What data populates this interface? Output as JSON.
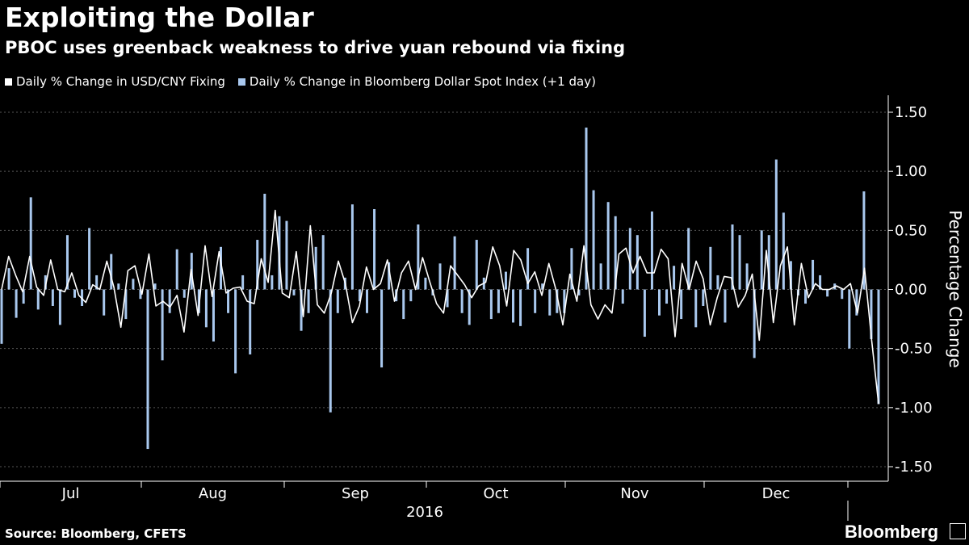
{
  "header": {
    "title": "Exploiting the Dollar",
    "subtitle": "PBOC uses greenback weakness to drive yuan rebound via fixing"
  },
  "footer": {
    "source": "Source: Bloomberg, CFETS",
    "brand": "Bloomberg",
    "brand_logo_icon": "bloomberg-terminal-icon"
  },
  "chart_data": {
    "type": "bar",
    "title": "Exploiting the Dollar",
    "subtitle": "PBOC uses greenback weakness to drive yuan rebound via fixing",
    "ylabel": "Percentage Change",
    "xlabel": "2016",
    "ylim": [
      -1.5,
      1.5
    ],
    "yticks": [
      "1.50",
      "1.00",
      "0.50",
      "0.00",
      "-0.50",
      "-1.00",
      "-1.50"
    ],
    "ytick_values": [
      1.5,
      1.0,
      0.5,
      0.0,
      -0.5,
      -1.0,
      -1.5
    ],
    "months": [
      "Jul",
      "Aug",
      "Sep",
      "Oct",
      "Nov",
      "Dec"
    ],
    "year_label": "2016",
    "grid": true,
    "legend_position": "top-left",
    "colors": {
      "line": "#ffffff",
      "bars": "#a9c8ee",
      "background": "#000000",
      "grid": "#555555"
    },
    "series": [
      {
        "name": "Daily % Change in USD/CNY Fixing",
        "type": "line",
        "values": [
          0.0,
          0.28,
          0.12,
          -0.02,
          0.28,
          0.02,
          -0.05,
          0.25,
          0.0,
          -0.02,
          0.14,
          -0.05,
          -0.11,
          0.04,
          0.0,
          0.24,
          0.02,
          -0.32,
          0.16,
          0.2,
          -0.04,
          0.3,
          -0.14,
          -0.1,
          -0.15,
          -0.05,
          -0.36,
          0.17,
          -0.22,
          0.37,
          -0.06,
          0.32,
          -0.03,
          0.01,
          0.02,
          -0.1,
          -0.12,
          0.26,
          0.06,
          0.67,
          -0.03,
          -0.07,
          0.32,
          -0.23,
          0.54,
          -0.13,
          -0.2,
          -0.03,
          0.24,
          0.05,
          -0.28,
          -0.14,
          0.19,
          0.0,
          0.05,
          0.25,
          -0.1,
          0.14,
          0.24,
          0.0,
          0.27,
          0.07,
          -0.12,
          -0.2,
          0.2,
          0.12,
          0.04,
          -0.07,
          0.03,
          0.06,
          0.36,
          0.2,
          -0.14,
          0.33,
          0.25,
          0.05,
          0.15,
          -0.05,
          0.22,
          0.0,
          -0.3,
          0.13,
          -0.1,
          0.37,
          -0.13,
          -0.25,
          -0.13,
          -0.2,
          0.3,
          0.35,
          0.14,
          0.28,
          0.14,
          0.14,
          0.34,
          0.26,
          -0.4,
          0.22,
          0.0,
          0.24,
          0.09,
          -0.3,
          -0.07,
          0.11,
          0.1,
          -0.15,
          -0.05,
          0.13,
          -0.43,
          0.33,
          -0.28,
          0.2,
          0.36,
          -0.3,
          0.22,
          -0.07,
          0.05,
          0.0,
          0.0,
          0.03,
          0.0,
          0.05,
          -0.2,
          0.18,
          -0.42,
          -0.97
        ],
        "_note_ignore": ""
      },
      {
        "name": "Daily % Change in Bloomberg Dollar Spot Index (+1 day)",
        "type": "bar",
        "values": [
          -0.46,
          0.18,
          -0.24,
          -0.12,
          0.78,
          -0.17,
          0.12,
          -0.14,
          -0.3,
          0.46,
          -0.07,
          -0.14,
          0.52,
          0.12,
          -0.22,
          0.3,
          0.05,
          -0.25,
          0.09,
          -0.08,
          -1.35,
          0.05,
          -0.6,
          -0.2,
          0.34,
          -0.07,
          0.31,
          -0.2,
          -0.32,
          -0.44,
          0.36,
          -0.2,
          -0.71,
          0.12,
          -0.55,
          0.42,
          0.81,
          0.12,
          0.62,
          0.58,
          -0.05,
          -0.35,
          -0.2,
          0.36,
          0.46,
          -1.04,
          -0.2,
          0.1,
          0.72,
          -0.1,
          -0.2,
          0.68,
          -0.66,
          0.23,
          -0.1,
          -0.25,
          -0.1,
          0.55,
          0.1,
          -0.05,
          0.22,
          -0.15,
          0.45,
          -0.2,
          -0.3,
          0.42,
          0.1,
          -0.25,
          -0.2,
          0.15,
          -0.28,
          -0.31,
          0.35,
          -0.2,
          0.05,
          -0.22,
          -0.2,
          -0.2,
          0.35,
          -0.05,
          1.37,
          0.84,
          0.22,
          0.74,
          0.62,
          -0.12,
          0.52,
          0.46,
          -0.4,
          0.66,
          -0.22,
          -0.12,
          0.2,
          -0.25,
          0.52,
          -0.32,
          -0.14,
          0.36,
          0.12,
          -0.28,
          0.55,
          0.46,
          0.22,
          -0.58,
          0.5,
          0.46,
          1.1,
          0.65,
          0.24,
          -0.05,
          -0.12,
          0.25,
          0.12,
          -0.06,
          0.05,
          -0.08,
          -0.5,
          -0.22,
          0.83,
          -0.42,
          -0.97
        ]
      }
    ]
  }
}
